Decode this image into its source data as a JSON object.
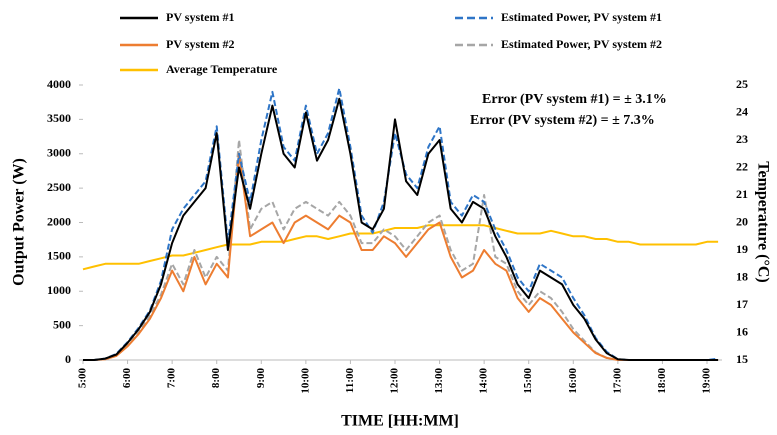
{
  "chart_data": {
    "type": "line",
    "xlabel": "TIME [HH:MM]",
    "ylabel": "Output Power (W)",
    "y2label": "Temperature (°C)",
    "annotations": [
      "Error (PV system #1) = ± 3.1%",
      "Error (PV system #2) = ± 7.3%"
    ],
    "categories": [
      "5:00",
      null,
      null,
      null,
      "6:00",
      null,
      null,
      null,
      "7:00",
      null,
      null,
      null,
      "8:00",
      null,
      null,
      null,
      "9:00",
      null,
      null,
      null,
      "10:00",
      null,
      null,
      null,
      "11:00",
      null,
      null,
      null,
      "12:00",
      null,
      null,
      null,
      "13:00",
      null,
      null,
      null,
      "14:00",
      null,
      null,
      null,
      "15:00",
      null,
      null,
      null,
      "16:00",
      null,
      null,
      null,
      "17:00",
      null,
      null,
      null,
      "18:00",
      null,
      null,
      null,
      "19:00",
      null
    ],
    "ylim": [
      0,
      4000
    ],
    "yticks": [
      0,
      500,
      1000,
      1500,
      2000,
      2500,
      3000,
      3500,
      4000
    ],
    "y2lim": [
      15,
      25
    ],
    "y2ticks": [
      15,
      16,
      17,
      18,
      19,
      20,
      21,
      22,
      23,
      24,
      25
    ],
    "series": [
      {
        "name": "PV system #1",
        "color": "#000000",
        "dashed": false,
        "values": [
          0,
          0,
          20,
          80,
          250,
          450,
          700,
          1100,
          1700,
          2100,
          2300,
          2500,
          3300,
          1600,
          2800,
          2200,
          3000,
          3700,
          3000,
          2800,
          3600,
          2900,
          3200,
          3800,
          3000,
          2000,
          1900,
          2200,
          3500,
          2600,
          2400,
          3000,
          3200,
          2200,
          2000,
          2300,
          2200,
          1800,
          1500,
          1100,
          900,
          1300,
          1200,
          1100,
          800,
          600,
          300,
          100,
          10,
          0,
          0,
          0,
          0,
          0,
          0,
          0,
          0,
          0
        ]
      },
      {
        "name": "Estimated Power, PV system #1",
        "color": "#2e75c7",
        "dashed": true,
        "values": [
          0,
          0,
          20,
          90,
          260,
          470,
          720,
          1150,
          1900,
          2200,
          2400,
          2600,
          3400,
          1700,
          3000,
          2300,
          3200,
          3900,
          3100,
          2900,
          3700,
          3000,
          3300,
          3950,
          3100,
          2100,
          1850,
          2300,
          3300,
          2700,
          2500,
          3100,
          3400,
          2300,
          2100,
          2400,
          2300,
          1900,
          1600,
          1200,
          1000,
          1400,
          1300,
          1200,
          900,
          650,
          320,
          120,
          10,
          0,
          0,
          0,
          0,
          0,
          0,
          0,
          0,
          20
        ]
      },
      {
        "name": "PV system #2",
        "color": "#ed7d31",
        "dashed": false,
        "values": [
          0,
          0,
          10,
          60,
          200,
          380,
          600,
          900,
          1300,
          1000,
          1500,
          1100,
          1400,
          1200,
          3000,
          1800,
          1900,
          2000,
          1700,
          2000,
          2100,
          2000,
          1900,
          2100,
          2000,
          1600,
          1600,
          1800,
          1700,
          1500,
          1700,
          1900,
          2000,
          1500,
          1200,
          1300,
          1600,
          1400,
          1300,
          900,
          700,
          900,
          800,
          600,
          400,
          250,
          100,
          30,
          0,
          0,
          0,
          0,
          0,
          0,
          0,
          0,
          0,
          0
        ]
      },
      {
        "name": "Estimated Power, PV system #2",
        "color": "#a6a6a6",
        "dashed": true,
        "values": [
          0,
          0,
          10,
          70,
          220,
          400,
          650,
          950,
          1400,
          1100,
          1600,
          1200,
          1500,
          1300,
          3200,
          1900,
          2200,
          2300,
          1900,
          2200,
          2300,
          2200,
          2100,
          2300,
          2100,
          1700,
          1700,
          1900,
          1800,
          1600,
          1800,
          2000,
          2100,
          1600,
          1300,
          1400,
          2400,
          1500,
          1400,
          1000,
          800,
          1000,
          900,
          700,
          450,
          280,
          110,
          30,
          0,
          0,
          0,
          0,
          0,
          0,
          0,
          0,
          0,
          0
        ]
      },
      {
        "name": "Average Temperature",
        "color": "#ffc000",
        "dashed": false,
        "axis": "y2",
        "values": [
          18.3,
          18.4,
          18.5,
          18.5,
          18.5,
          18.5,
          18.6,
          18.7,
          18.8,
          18.8,
          18.9,
          19.0,
          19.1,
          19.2,
          19.2,
          19.2,
          19.3,
          19.3,
          19.3,
          19.4,
          19.5,
          19.5,
          19.4,
          19.5,
          19.6,
          19.6,
          19.6,
          19.7,
          19.8,
          19.8,
          19.8,
          19.9,
          19.9,
          19.9,
          19.9,
          19.9,
          19.9,
          19.8,
          19.7,
          19.6,
          19.6,
          19.6,
          19.7,
          19.6,
          19.5,
          19.5,
          19.4,
          19.4,
          19.3,
          19.3,
          19.2,
          19.2,
          19.2,
          19.2,
          19.2,
          19.2,
          19.3,
          19.3
        ]
      }
    ]
  }
}
